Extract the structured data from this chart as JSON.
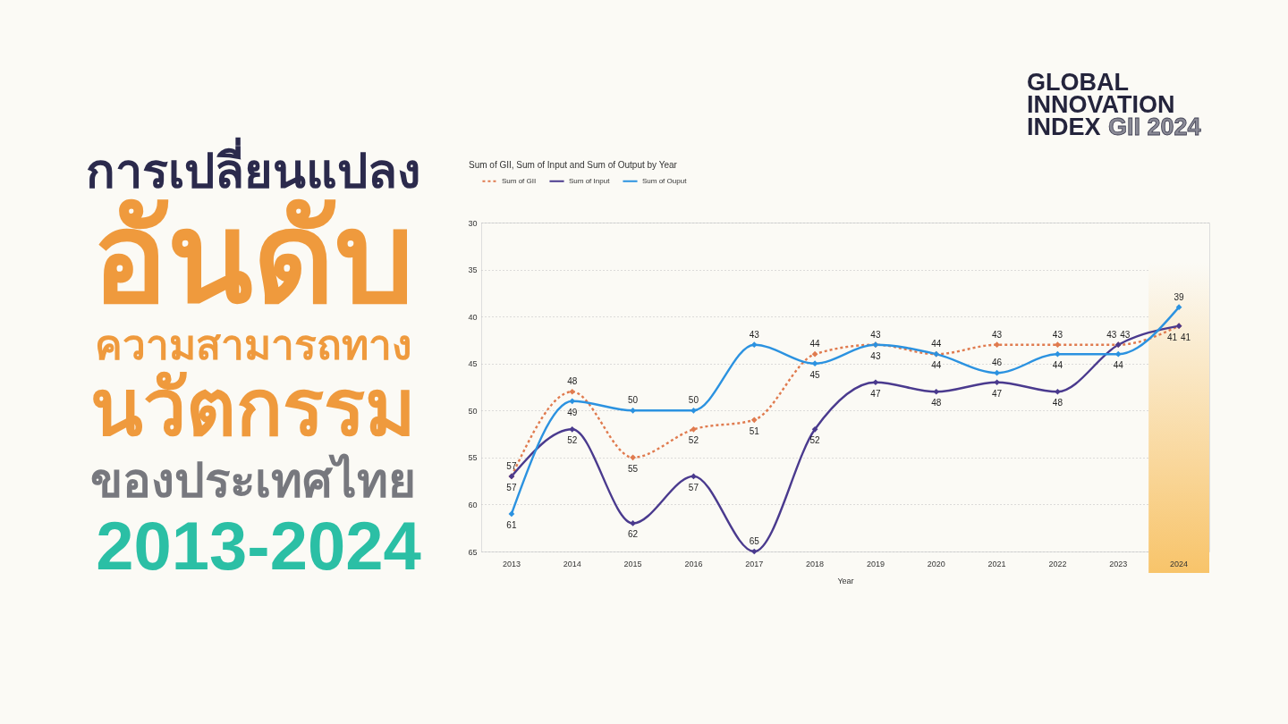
{
  "chart_data": {
    "type": "line",
    "title": "Sum of GII, Sum of Input and Sum of Output by Year",
    "xlabel": "Year",
    "annotations": [
      "การเปลี่ยนแปลง",
      "อันดับ",
      "ความสามารถทาง",
      "นวัตกรรม",
      "ของประเทศไทย",
      "2013-2024",
      "GLOBAL",
      "INNOVATION",
      "INDEX",
      "GII 2024"
    ],
    "categories": [
      "2013",
      "2014",
      "2015",
      "2016",
      "2017",
      "2018",
      "2019",
      "2020",
      "2021",
      "2022",
      "2023",
      "2024"
    ],
    "series": [
      {
        "name": "Sum of GII",
        "color": "#e07b4f",
        "line_style": "dotted",
        "values": [
          57,
          48,
          55,
          52,
          51,
          44,
          43,
          44,
          43,
          43,
          43,
          41
        ]
      },
      {
        "name": "Sum of Input",
        "color": "#4a3a8e",
        "values": [
          57,
          52,
          62,
          57,
          65,
          52,
          47,
          48,
          47,
          48,
          43,
          41
        ]
      },
      {
        "name": "Sum of Ouput",
        "color": "#2b92e0",
        "values": [
          61,
          49,
          50,
          50,
          43,
          45,
          43,
          44,
          46,
          44,
          44,
          39
        ]
      }
    ],
    "ylim": [
      65,
      30
    ],
    "yticks": [
      30,
      35,
      40,
      45,
      50,
      55,
      60,
      65
    ],
    "grid": "y",
    "legend": "top left",
    "marker": "diamond",
    "data_labels": true,
    "bands": [
      {
        "axis": "x",
        "from": "2024",
        "to": "2024",
        "color": "#f8c46a"
      }
    ]
  }
}
